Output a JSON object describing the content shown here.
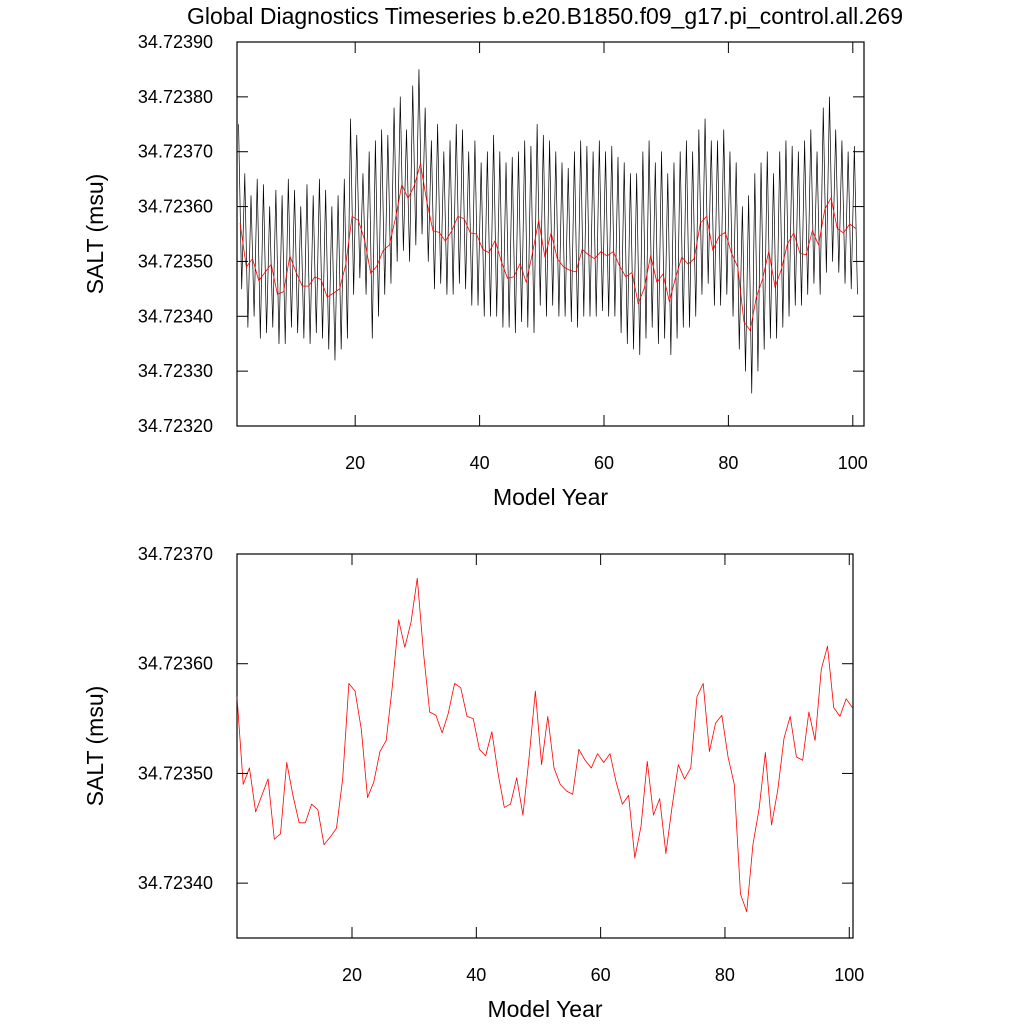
{
  "chart_data": [
    {
      "type": "line",
      "title": "Global Diagnostics Timeseries b.e20.B1850.f09_g17.pi_control.all.269",
      "xlabel": "Model Year",
      "ylabel": "SALT (msu)",
      "xlim": [
        1,
        101.8
      ],
      "ylim": [
        34.7232,
        34.7239
      ],
      "xticks": [
        20,
        40,
        60,
        80,
        100
      ],
      "yticks": [
        {
          "value": 34.7232,
          "label": "34.72320"
        },
        {
          "value": 34.7233,
          "label": "34.72330"
        },
        {
          "value": 34.7234,
          "label": "34.72340"
        },
        {
          "value": 34.7235,
          "label": "34.72350"
        },
        {
          "value": 34.7236,
          "label": "34.72360"
        },
        {
          "value": 34.7237,
          "label": "34.72370"
        },
        {
          "value": 34.7238,
          "label": "34.72380"
        },
        {
          "value": 34.7239,
          "label": "34.72390"
        }
      ],
      "series": [
        {
          "color": "#000000",
          "x": [
            1.25,
            1.75,
            2.25,
            2.75,
            3.25,
            3.75,
            4.25,
            4.75,
            5.25,
            5.75,
            6.25,
            6.75,
            7.25,
            7.75,
            8.25,
            8.75,
            9.25,
            9.75,
            10.25,
            10.75,
            11.25,
            11.75,
            12.25,
            12.75,
            13.25,
            13.75,
            14.25,
            14.75,
            15.25,
            15.75,
            16.25,
            16.75,
            17.25,
            17.75,
            18.25,
            18.75,
            19.25,
            19.75,
            20.25,
            20.75,
            21.25,
            21.75,
            22.25,
            22.75,
            23.25,
            23.75,
            24.25,
            24.75,
            25.25,
            25.75,
            26.25,
            26.75,
            27.25,
            27.75,
            28.25,
            28.75,
            29.25,
            29.75,
            30.25,
            30.75,
            31.25,
            31.75,
            32.25,
            32.75,
            33.25,
            33.75,
            34.25,
            34.75,
            35.25,
            35.75,
            36.25,
            36.75,
            37.25,
            37.75,
            38.25,
            38.75,
            39.25,
            39.75,
            40.25,
            40.75,
            41.25,
            41.75,
            42.25,
            42.75,
            43.25,
            43.75,
            44.25,
            44.75,
            45.25,
            45.75,
            46.25,
            46.75,
            47.25,
            47.75,
            48.25,
            48.75,
            49.25,
            49.75,
            50.25,
            50.75,
            51.25,
            51.75,
            52.25,
            52.75,
            53.25,
            53.75,
            54.25,
            54.75,
            55.25,
            55.75,
            56.25,
            56.75,
            57.25,
            57.75,
            58.25,
            58.75,
            59.25,
            59.75,
            60.25,
            60.75,
            61.25,
            61.75,
            62.25,
            62.75,
            63.25,
            63.75,
            64.25,
            64.75,
            65.25,
            65.75,
            66.25,
            66.75,
            67.25,
            67.75,
            68.25,
            68.75,
            69.25,
            69.75,
            70.25,
            70.75,
            71.25,
            71.75,
            72.25,
            72.75,
            73.25,
            73.75,
            74.25,
            74.75,
            75.25,
            75.75,
            76.25,
            76.75,
            77.25,
            77.75,
            78.25,
            78.75,
            79.25,
            79.75,
            80.25,
            80.75,
            81.25,
            81.75,
            82.25,
            82.75,
            83.25,
            83.75,
            84.25,
            84.75,
            85.25,
            85.75,
            86.25,
            86.75,
            87.25,
            87.75,
            88.25,
            88.75,
            89.25,
            89.75,
            90.25,
            90.75,
            91.25,
            91.75,
            92.25,
            92.75,
            93.25,
            93.75,
            94.25,
            94.75,
            95.25,
            95.75,
            96.25,
            96.75,
            97.25,
            97.75,
            98.25,
            98.75,
            99.25,
            99.75,
            100.25,
            100.75
          ],
          "values": [
            34.72375,
            34.72345,
            34.72366,
            34.72338,
            34.72362,
            34.7234,
            34.72365,
            34.72336,
            34.72364,
            34.72337,
            34.7236,
            34.72338,
            34.72363,
            34.72335,
            34.72362,
            34.72335,
            34.72365,
            34.72338,
            34.72363,
            34.72337,
            34.7236,
            34.72336,
            34.72364,
            34.72335,
            34.72362,
            34.72337,
            34.72365,
            34.72336,
            34.72363,
            34.72334,
            34.7236,
            34.72332,
            34.72362,
            34.72334,
            34.72365,
            34.72336,
            34.72376,
            34.72344,
            34.72373,
            34.72347,
            34.72366,
            34.72344,
            34.7237,
            34.72336,
            34.72372,
            34.7234,
            34.72374,
            34.72344,
            34.72373,
            34.72346,
            34.72378,
            34.7235,
            34.7238,
            34.72352,
            34.72374,
            34.7235,
            34.72382,
            34.72353,
            34.72385,
            34.72355,
            34.72378,
            34.7235,
            34.72372,
            34.72345,
            34.72375,
            34.72346,
            34.7237,
            34.72344,
            34.72372,
            34.72344,
            34.72375,
            34.72346,
            34.72374,
            34.72345,
            34.7237,
            34.72342,
            34.72372,
            34.72342,
            34.72368,
            34.7234,
            34.7237,
            34.7234,
            34.72373,
            34.7234,
            34.7237,
            34.72338,
            34.72368,
            34.72338,
            34.72369,
            34.72337,
            34.7237,
            34.72339,
            34.72372,
            34.72338,
            34.72371,
            34.72337,
            34.72375,
            34.72342,
            34.72373,
            34.7234,
            34.72372,
            34.72342,
            34.7237,
            34.7234,
            34.72368,
            34.7234,
            34.72367,
            34.72339,
            34.7237,
            34.72338,
            34.72372,
            34.7234,
            34.72371,
            34.7234,
            34.7237,
            34.7234,
            34.72372,
            34.72341,
            34.7237,
            34.7234,
            34.72371,
            34.7234,
            34.72369,
            34.72337,
            34.72368,
            34.72335,
            34.72366,
            34.72334,
            34.72366,
            34.72333,
            34.7237,
            34.72336,
            34.72372,
            34.72338,
            34.72368,
            34.72335,
            34.7237,
            34.72336,
            34.72366,
            34.72333,
            34.72368,
            34.72336,
            34.7237,
            34.72338,
            34.72372,
            34.72338,
            34.7237,
            34.7234,
            34.72374,
            34.72344,
            34.72376,
            34.72346,
            34.72372,
            34.72342,
            34.72372,
            34.72342,
            34.72374,
            34.72344,
            34.7237,
            34.7234,
            34.72368,
            34.72334,
            34.7236,
            34.7233,
            34.72362,
            34.72326,
            34.72366,
            34.7233,
            34.72368,
            34.72334,
            34.7237,
            34.72336,
            34.72366,
            34.72336,
            34.7237,
            34.72338,
            34.72372,
            34.7234,
            34.72371,
            34.72342,
            34.7237,
            34.72342,
            34.72372,
            34.72344,
            34.72374,
            34.72346,
            34.7237,
            34.72344,
            34.72378,
            34.72348,
            34.7238,
            34.7235,
            34.72374,
            34.72348,
            34.72372,
            34.72346,
            34.7237,
            34.72345,
            34.72371,
            34.72344
          ]
        },
        {
          "color": "#ff0000",
          "x": [
            1.5,
            2.5,
            3.5,
            4.5,
            5.5,
            6.5,
            7.5,
            8.5,
            9.5,
            10.5,
            11.5,
            12.5,
            13.5,
            14.5,
            15.5,
            16.5,
            17.5,
            18.5,
            19.5,
            20.5,
            21.5,
            22.5,
            23.5,
            24.5,
            25.5,
            26.5,
            27.5,
            28.5,
            29.5,
            30.5,
            31.5,
            32.5,
            33.5,
            34.5,
            35.5,
            36.5,
            37.5,
            38.5,
            39.5,
            40.5,
            41.5,
            42.5,
            43.5,
            44.5,
            45.5,
            46.5,
            47.5,
            48.5,
            49.5,
            50.5,
            51.5,
            52.5,
            53.5,
            54.5,
            55.5,
            56.5,
            57.5,
            58.5,
            59.5,
            60.5,
            61.5,
            62.5,
            63.5,
            64.5,
            65.5,
            66.5,
            67.5,
            68.5,
            69.5,
            70.5,
            71.5,
            72.5,
            73.5,
            74.5,
            75.5,
            76.5,
            77.5,
            78.5,
            79.5,
            80.5,
            81.5,
            82.5,
            83.5,
            84.5,
            85.5,
            86.5,
            87.5,
            88.5,
            89.5,
            90.5,
            91.5,
            92.5,
            93.5,
            94.5,
            95.5,
            96.5,
            97.5,
            98.5,
            99.5,
            100.5
          ],
          "values": [
            34.72357,
            34.72349,
            34.723505,
            34.723465,
            34.72348,
            34.723495,
            34.72344,
            34.723445,
            34.72351,
            34.72348,
            34.723455,
            34.723455,
            34.723472,
            34.723467,
            34.723435,
            34.723442,
            34.72345,
            34.723495,
            34.723582,
            34.723575,
            34.72354,
            34.723478,
            34.723492,
            34.72352,
            34.72353,
            34.72358,
            34.72364,
            34.723615,
            34.723638,
            34.723678,
            34.72361,
            34.723556,
            34.723553,
            34.723537,
            34.723555,
            34.723582,
            34.723578,
            34.723552,
            34.72355,
            34.723522,
            34.723516,
            34.723538,
            34.7235,
            34.723469,
            34.723472,
            34.723496,
            34.723462,
            34.723515,
            34.723575,
            34.723508,
            34.723552,
            34.723505,
            34.72349,
            34.723484,
            34.723481,
            34.723522,
            34.723512,
            34.723505,
            34.723518,
            34.72351,
            34.723518,
            34.723492,
            34.723472,
            34.72348,
            34.723423,
            34.723452,
            34.723511,
            34.723462,
            34.723477,
            34.723427,
            34.72347,
            34.723508,
            34.723495,
            34.723505,
            34.72357,
            34.723582,
            34.72352,
            34.723546,
            34.723553,
            34.723515,
            34.72349,
            34.72339,
            34.723374,
            34.723435,
            34.723468,
            34.723519,
            34.723453,
            34.723485,
            34.723532,
            34.723552,
            34.723515,
            34.723512,
            34.723556,
            34.72353,
            34.723595,
            34.723616,
            34.72356,
            34.723552,
            34.723568,
            34.72356
          ]
        }
      ]
    },
    {
      "type": "line",
      "xlabel": "Model Year",
      "ylabel": "SALT (msu)",
      "xlim": [
        1.5,
        100.6
      ],
      "ylim": [
        34.72335,
        34.7237
      ],
      "xticks": [
        20,
        40,
        60,
        80,
        100
      ],
      "yticks": [
        {
          "value": 34.7234,
          "label": "34.72340"
        },
        {
          "value": 34.7235,
          "label": "34.72350"
        },
        {
          "value": 34.7236,
          "label": "34.72360"
        },
        {
          "value": 34.7237,
          "label": "34.72370"
        }
      ],
      "series": [
        {
          "color": "#ff0000",
          "x": [
            1.5,
            2.5,
            3.5,
            4.5,
            5.5,
            6.5,
            7.5,
            8.5,
            9.5,
            10.5,
            11.5,
            12.5,
            13.5,
            14.5,
            15.5,
            16.5,
            17.5,
            18.5,
            19.5,
            20.5,
            21.5,
            22.5,
            23.5,
            24.5,
            25.5,
            26.5,
            27.5,
            28.5,
            29.5,
            30.5,
            31.5,
            32.5,
            33.5,
            34.5,
            35.5,
            36.5,
            37.5,
            38.5,
            39.5,
            40.5,
            41.5,
            42.5,
            43.5,
            44.5,
            45.5,
            46.5,
            47.5,
            48.5,
            49.5,
            50.5,
            51.5,
            52.5,
            53.5,
            54.5,
            55.5,
            56.5,
            57.5,
            58.5,
            59.5,
            60.5,
            61.5,
            62.5,
            63.5,
            64.5,
            65.5,
            66.5,
            67.5,
            68.5,
            69.5,
            70.5,
            71.5,
            72.5,
            73.5,
            74.5,
            75.5,
            76.5,
            77.5,
            78.5,
            79.5,
            80.5,
            81.5,
            82.5,
            83.5,
            84.5,
            85.5,
            86.5,
            87.5,
            88.5,
            89.5,
            90.5,
            91.5,
            92.5,
            93.5,
            94.5,
            95.5,
            96.5,
            97.5,
            98.5,
            99.5,
            100.5
          ],
          "values": [
            34.72357,
            34.72349,
            34.723505,
            34.723465,
            34.72348,
            34.723495,
            34.72344,
            34.723445,
            34.72351,
            34.72348,
            34.723455,
            34.723455,
            34.723472,
            34.723467,
            34.723435,
            34.723442,
            34.72345,
            34.723495,
            34.723582,
            34.723575,
            34.72354,
            34.723478,
            34.723492,
            34.72352,
            34.72353,
            34.72358,
            34.72364,
            34.723615,
            34.723638,
            34.723678,
            34.72361,
            34.723556,
            34.723553,
            34.723537,
            34.723555,
            34.723582,
            34.723578,
            34.723552,
            34.72355,
            34.723522,
            34.723516,
            34.723538,
            34.7235,
            34.723469,
            34.723472,
            34.723496,
            34.723462,
            34.723515,
            34.723575,
            34.723508,
            34.723552,
            34.723505,
            34.72349,
            34.723484,
            34.723481,
            34.723522,
            34.723512,
            34.723505,
            34.723518,
            34.72351,
            34.723518,
            34.723492,
            34.723472,
            34.72348,
            34.723423,
            34.723452,
            34.723511,
            34.723462,
            34.723477,
            34.723427,
            34.72347,
            34.723508,
            34.723495,
            34.723505,
            34.72357,
            34.723582,
            34.72352,
            34.723546,
            34.723553,
            34.723515,
            34.72349,
            34.72339,
            34.723374,
            34.723435,
            34.723468,
            34.723519,
            34.723453,
            34.723485,
            34.723532,
            34.723552,
            34.723515,
            34.723512,
            34.723556,
            34.72353,
            34.723595,
            34.723616,
            34.72356,
            34.723552,
            34.723568,
            34.72356
          ]
        }
      ]
    }
  ]
}
